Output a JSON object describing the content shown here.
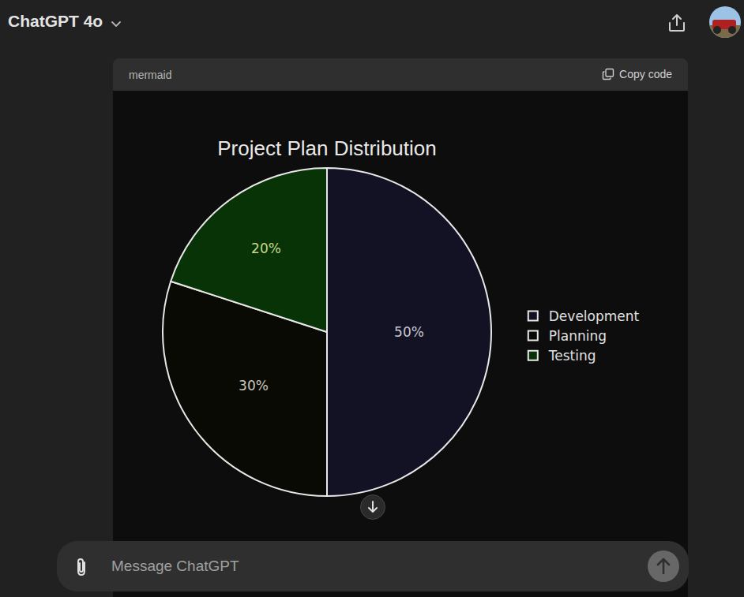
{
  "app": {
    "header": {
      "title": "ChatGPT 4o"
    },
    "code_block": {
      "language": "mermaid",
      "copy_button": "Copy code"
    },
    "composer": {
      "placeholder": "Message ChatGPT"
    }
  },
  "chart_data": {
    "type": "pie",
    "title": "Project Plan Distribution",
    "categories": [
      "Development",
      "Planning",
      "Testing"
    ],
    "values": [
      50,
      30,
      20
    ],
    "value_labels": [
      "50%",
      "30%",
      "20%"
    ],
    "colors": [
      "#121224",
      "#0a0a05",
      "#073307"
    ],
    "data_labels": true,
    "legend": "right"
  }
}
